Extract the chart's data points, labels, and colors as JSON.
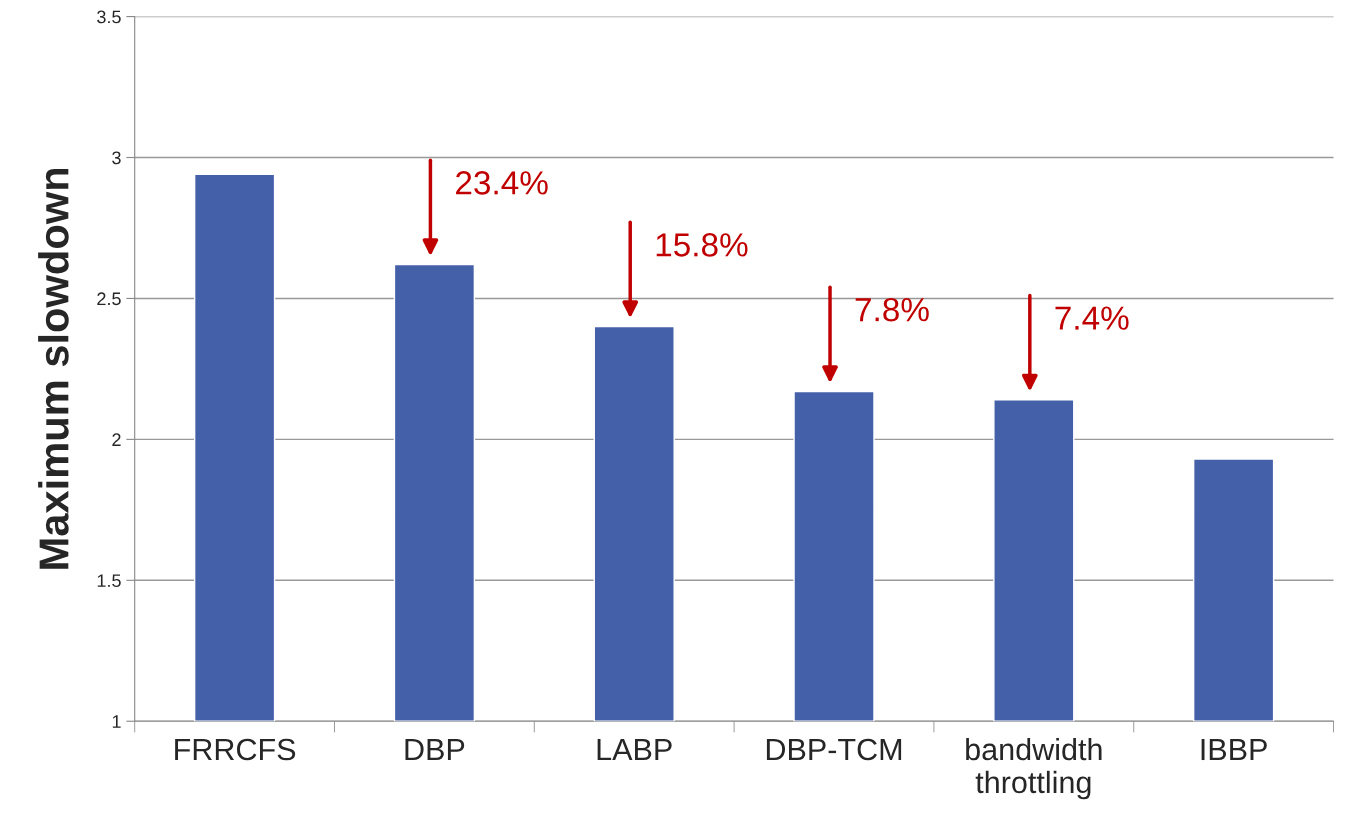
{
  "chart_data": {
    "type": "bar",
    "ylabel": "Maximum slowdown",
    "categories": [
      "FRRCFS",
      "DBP",
      "LABP",
      "DBP-TCM",
      "bandwidth\nthrottling",
      "IBBP"
    ],
    "values": [
      2.94,
      2.62,
      2.4,
      2.17,
      2.14,
      1.93
    ],
    "color": "#4460a8",
    "ylim": [
      1,
      3.5
    ],
    "yticks": [
      1,
      1.5,
      2,
      2.5,
      3,
      3.5
    ],
    "grid": "y",
    "legend": false,
    "annotations": [
      {
        "text": "23.4%",
        "x": "DBP",
        "y": 2.62
      },
      {
        "text": "15.8%",
        "x": "LABP",
        "y": 2.4
      },
      {
        "text": "7.8%",
        "x": "DBP-TCM",
        "y": 2.17
      },
      {
        "text": "7.4%",
        "x": "bandwidth\nthrottling",
        "y": 2.14
      }
    ]
  }
}
